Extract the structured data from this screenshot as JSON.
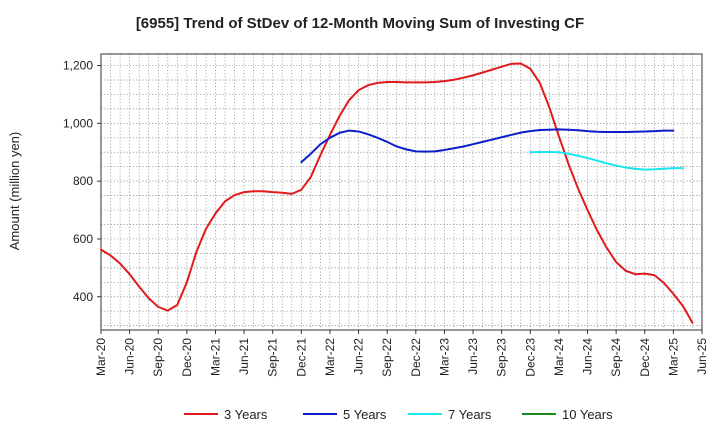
{
  "chart_data": {
    "type": "line",
    "title": "[6955]  Trend of StDev of 12-Month Moving Sum of Investing CF",
    "xlabel": "",
    "ylabel": "Amount (million yen)",
    "ylim": [
      285,
      1240
    ],
    "yticks": [
      400,
      600,
      800,
      1000,
      1200
    ],
    "ytick_labels": [
      "400",
      "600",
      "800",
      "1,000",
      "1,200"
    ],
    "x_tick_labels": [
      "Mar-20",
      "Jun-20",
      "Sep-20",
      "Dec-20",
      "Mar-21",
      "Jun-21",
      "Sep-21",
      "Dec-21",
      "Mar-22",
      "Jun-22",
      "Sep-22",
      "Dec-22",
      "Mar-23",
      "Jun-23",
      "Sep-23",
      "Dec-23",
      "Mar-24",
      "Jun-24",
      "Sep-24",
      "Dec-24",
      "Mar-25",
      "Jun-25"
    ],
    "x_start": "Mar-20",
    "x_end": "Jun-25",
    "grid": true,
    "legend_position": "bottom",
    "series": [
      {
        "name": "3 Years",
        "color": "#e31a1c",
        "start": "Mar-20",
        "values": [
          563,
          543,
          515,
          478,
          435,
          395,
          365,
          352,
          372,
          450,
          555,
          635,
          688,
          730,
          752,
          762,
          765,
          765,
          762,
          760,
          756,
          770,
          815,
          890,
          960,
          1025,
          1080,
          1115,
          1132,
          1140,
          1143,
          1143,
          1142,
          1142,
          1142,
          1143,
          1146,
          1151,
          1158,
          1166,
          1176,
          1186,
          1196,
          1206,
          1207,
          1189,
          1140,
          1055,
          955,
          860,
          775,
          700,
          630,
          570,
          520,
          490,
          478,
          480,
          475,
          448,
          410,
          368,
          310
        ]
      },
      {
        "name": "5 Years",
        "color": "#0a1fc8",
        "start": "Dec-21",
        "values": [
          866,
          895,
          928,
          950,
          967,
          975,
          972,
          962,
          950,
          936,
          920,
          910,
          903,
          902,
          903,
          908,
          914,
          920,
          928,
          936,
          944,
          952,
          960,
          968,
          973,
          977,
          978,
          979,
          978,
          976,
          973,
          971,
          970,
          970,
          970,
          971,
          972,
          973,
          975,
          975
        ]
      },
      {
        "name": "7 Years",
        "color": "#19e6ef",
        "start": "Dec-23",
        "values": [
          900,
          901,
          901,
          900,
          895,
          888,
          880,
          871,
          862,
          854,
          847,
          843,
          840,
          841,
          843,
          845,
          845
        ]
      },
      {
        "name": "10 Years",
        "color": "#1a8a1a",
        "start": "Dec-23",
        "values": []
      }
    ]
  }
}
